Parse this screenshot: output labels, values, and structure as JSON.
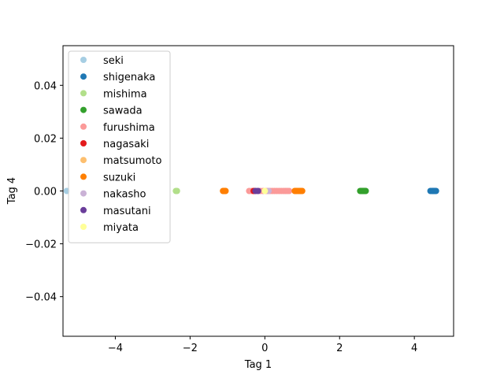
{
  "chart_data": {
    "type": "scatter",
    "title": "",
    "xlabel": "Tag 1",
    "ylabel": "Tag 4",
    "xlim": [
      -5.4,
      5.05
    ],
    "ylim": [
      -0.055,
      0.055
    ],
    "xticks": [
      -4,
      -2,
      0,
      2,
      4
    ],
    "xtick_labels": [
      "−4",
      "−2",
      "0",
      "2",
      "4"
    ],
    "yticks": [
      -0.04,
      -0.02,
      0.0,
      0.02,
      0.04
    ],
    "ytick_labels": [
      "−0.04",
      "−0.02",
      "0.00",
      "0.02",
      "0.04"
    ],
    "grid": false,
    "legend_position": "top-left",
    "series": [
      {
        "name": "seki",
        "color": "#a6cee3",
        "x": [
          -5.3
        ],
        "y": [
          0
        ]
      },
      {
        "name": "shigenaka",
        "color": "#1f78b4",
        "x": [
          4.43,
          4.47,
          4.5,
          4.52,
          4.55,
          4.58
        ],
        "y": [
          0,
          0,
          0,
          0,
          0,
          0
        ]
      },
      {
        "name": "mishima",
        "color": "#b2df8a",
        "x": [
          -2.38,
          -2.35
        ],
        "y": [
          0,
          0
        ]
      },
      {
        "name": "sawada",
        "color": "#33a02c",
        "x": [
          2.55,
          2.58,
          2.6,
          2.62,
          2.64,
          2.66,
          2.68,
          2.7
        ],
        "y": [
          0,
          0,
          0,
          0,
          0,
          0,
          0,
          0
        ]
      },
      {
        "name": "furushima",
        "color": "#fb9a99",
        "x": [
          -0.42,
          -0.35,
          -0.28,
          -0.2,
          -0.12,
          -0.05,
          0.02,
          0.08,
          0.14,
          0.2,
          0.26,
          0.32,
          0.38,
          0.44,
          0.5,
          0.55,
          0.6,
          0.65
        ],
        "y": [
          0,
          0,
          0,
          0,
          0,
          0,
          0,
          0,
          0,
          0,
          0,
          0,
          0,
          0,
          0,
          0,
          0,
          0
        ]
      },
      {
        "name": "nagasaki",
        "color": "#e31a1c",
        "x": [
          -0.3
        ],
        "y": [
          0
        ]
      },
      {
        "name": "matsumoto",
        "color": "#fdbf6f",
        "x": [
          -1.08,
          0.82
        ],
        "y": [
          0,
          0
        ]
      },
      {
        "name": "suzuki",
        "color": "#ff7f00",
        "x": [
          -1.12,
          -1.1,
          -1.07,
          -1.05,
          0.8,
          0.84,
          0.88,
          0.92,
          0.96,
          1.0
        ],
        "y": [
          0,
          0,
          0,
          0,
          0,
          0,
          0,
          0,
          0,
          0
        ]
      },
      {
        "name": "nakasho",
        "color": "#cab2d6",
        "x": [
          -0.22,
          0.1
        ],
        "y": [
          0,
          0
        ]
      },
      {
        "name": "masutani",
        "color": "#6a3d9a",
        "x": [
          -0.25,
          -0.18
        ],
        "y": [
          0,
          0
        ]
      },
      {
        "name": "miyata",
        "color": "#ffff99",
        "x": [
          0.0
        ],
        "y": [
          0
        ]
      }
    ]
  }
}
